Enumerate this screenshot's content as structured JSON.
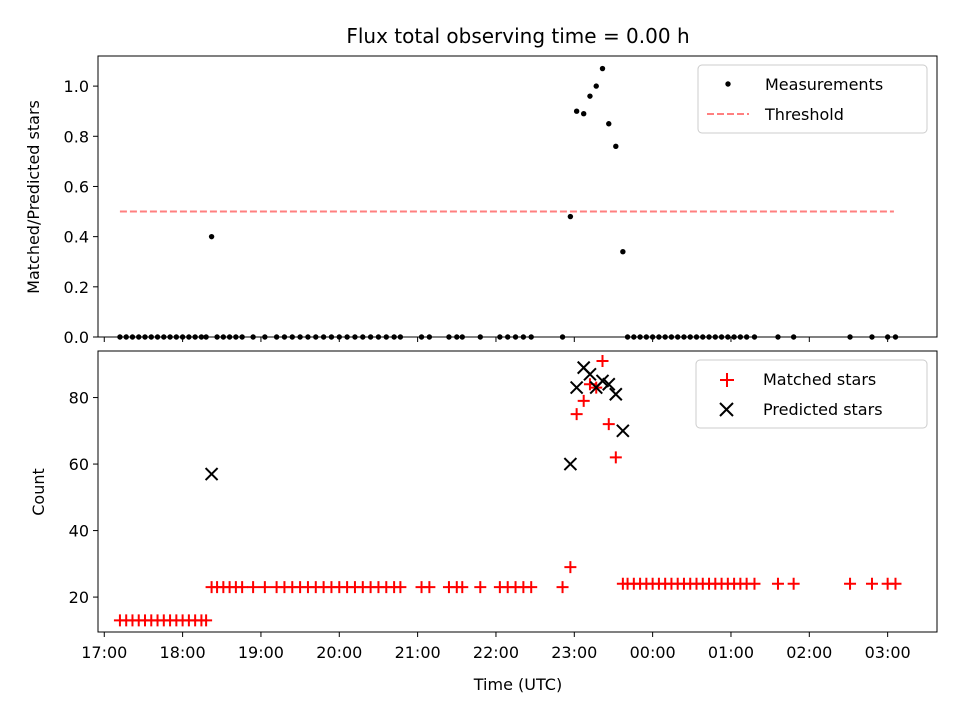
{
  "chart_data": [
    {
      "type": "scatter",
      "title": "Flux total observing time = 0.00 h",
      "xlabel": "",
      "ylabel": "Matched/Predicted stars",
      "x_unit": "hours since 17:00 UTC",
      "xlim": [
        16.92,
        27.63
      ],
      "ylim": [
        0,
        1.12
      ],
      "yticks": [
        "0.0",
        "0.2",
        "0.4",
        "0.6",
        "0.8",
        "1.0"
      ],
      "legend": {
        "placement": "top-right",
        "entries": [
          "Measurements",
          "Threshold"
        ]
      },
      "threshold": {
        "name": "Threshold",
        "value": 0.5,
        "x_range": [
          17.2,
          27.08
        ],
        "color": "#ff7f7f"
      },
      "series": [
        {
          "name": "Measurements",
          "color": "#000000",
          "points": [
            [
              17.2,
              0
            ],
            [
              17.28,
              0
            ],
            [
              17.36,
              0
            ],
            [
              17.44,
              0
            ],
            [
              17.52,
              0
            ],
            [
              17.6,
              0
            ],
            [
              17.68,
              0
            ],
            [
              17.76,
              0
            ],
            [
              17.84,
              0
            ],
            [
              17.92,
              0
            ],
            [
              18.0,
              0
            ],
            [
              18.08,
              0
            ],
            [
              18.16,
              0
            ],
            [
              18.24,
              0
            ],
            [
              18.3,
              0
            ],
            [
              18.37,
              0.4
            ],
            [
              18.44,
              0
            ],
            [
              18.52,
              0
            ],
            [
              18.6,
              0
            ],
            [
              18.68,
              0
            ],
            [
              18.76,
              0
            ],
            [
              18.9,
              0
            ],
            [
              19.05,
              0
            ],
            [
              19.2,
              0
            ],
            [
              19.3,
              0
            ],
            [
              19.4,
              0
            ],
            [
              19.5,
              0
            ],
            [
              19.6,
              0
            ],
            [
              19.7,
              0
            ],
            [
              19.8,
              0
            ],
            [
              19.9,
              0
            ],
            [
              20.0,
              0
            ],
            [
              20.1,
              0
            ],
            [
              20.2,
              0
            ],
            [
              20.3,
              0
            ],
            [
              20.4,
              0
            ],
            [
              20.5,
              0
            ],
            [
              20.6,
              0
            ],
            [
              20.7,
              0
            ],
            [
              20.78,
              0
            ],
            [
              21.05,
              0
            ],
            [
              21.15,
              0
            ],
            [
              21.4,
              0
            ],
            [
              21.5,
              0
            ],
            [
              21.57,
              0
            ],
            [
              21.8,
              0
            ],
            [
              22.05,
              0
            ],
            [
              22.15,
              0
            ],
            [
              22.25,
              0
            ],
            [
              22.35,
              0
            ],
            [
              22.45,
              0
            ],
            [
              22.85,
              0
            ],
            [
              22.95,
              0.48
            ],
            [
              23.03,
              0.9
            ],
            [
              23.12,
              0.89
            ],
            [
              23.2,
              0.96
            ],
            [
              23.28,
              1.0
            ],
            [
              23.36,
              1.07
            ],
            [
              23.44,
              0.85
            ],
            [
              23.53,
              0.76
            ],
            [
              23.62,
              0.34
            ],
            [
              23.68,
              0
            ],
            [
              23.76,
              0
            ],
            [
              23.84,
              0
            ],
            [
              23.92,
              0
            ],
            [
              24.0,
              0
            ],
            [
              24.08,
              0
            ],
            [
              24.16,
              0
            ],
            [
              24.24,
              0
            ],
            [
              24.32,
              0
            ],
            [
              24.4,
              0
            ],
            [
              24.48,
              0
            ],
            [
              24.56,
              0
            ],
            [
              24.64,
              0
            ],
            [
              24.72,
              0
            ],
            [
              24.8,
              0
            ],
            [
              24.88,
              0
            ],
            [
              24.96,
              0
            ],
            [
              25.04,
              0
            ],
            [
              25.12,
              0
            ],
            [
              25.2,
              0
            ],
            [
              25.3,
              0
            ],
            [
              25.6,
              0
            ],
            [
              25.8,
              0
            ],
            [
              26.52,
              0
            ],
            [
              26.8,
              0
            ],
            [
              27.0,
              0
            ],
            [
              27.1,
              0
            ]
          ]
        }
      ]
    },
    {
      "type": "scatter",
      "title": "",
      "xlabel": "Time (UTC)",
      "ylabel": "Count",
      "x_unit": "hours since 17:00 UTC",
      "xlim": [
        16.92,
        27.63
      ],
      "ylim": [
        9.5,
        94
      ],
      "yticks": [
        "20",
        "40",
        "60",
        "80"
      ],
      "xticks": [
        "17:00",
        "18:00",
        "19:00",
        "20:00",
        "21:00",
        "22:00",
        "23:00",
        "00:00",
        "01:00",
        "02:00",
        "03:00"
      ],
      "legend": {
        "placement": "top-right",
        "entries": [
          "Matched stars",
          "Predicted stars"
        ]
      },
      "series": [
        {
          "name": "Matched stars",
          "marker": "plus",
          "color": "#ff0000",
          "points": [
            [
              17.2,
              13
            ],
            [
              17.28,
              13
            ],
            [
              17.36,
              13
            ],
            [
              17.44,
              13
            ],
            [
              17.52,
              13
            ],
            [
              17.6,
              13
            ],
            [
              17.68,
              13
            ],
            [
              17.76,
              13
            ],
            [
              17.84,
              13
            ],
            [
              17.92,
              13
            ],
            [
              18.0,
              13
            ],
            [
              18.08,
              13
            ],
            [
              18.16,
              13
            ],
            [
              18.24,
              13
            ],
            [
              18.3,
              13
            ],
            [
              18.37,
              23
            ],
            [
              18.44,
              23
            ],
            [
              18.52,
              23
            ],
            [
              18.6,
              23
            ],
            [
              18.68,
              23
            ],
            [
              18.76,
              23
            ],
            [
              18.9,
              23
            ],
            [
              19.05,
              23
            ],
            [
              19.2,
              23
            ],
            [
              19.3,
              23
            ],
            [
              19.4,
              23
            ],
            [
              19.5,
              23
            ],
            [
              19.6,
              23
            ],
            [
              19.7,
              23
            ],
            [
              19.8,
              23
            ],
            [
              19.9,
              23
            ],
            [
              20.0,
              23
            ],
            [
              20.1,
              23
            ],
            [
              20.2,
              23
            ],
            [
              20.3,
              23
            ],
            [
              20.4,
              23
            ],
            [
              20.5,
              23
            ],
            [
              20.6,
              23
            ],
            [
              20.7,
              23
            ],
            [
              20.78,
              23
            ],
            [
              21.05,
              23
            ],
            [
              21.15,
              23
            ],
            [
              21.4,
              23
            ],
            [
              21.5,
              23
            ],
            [
              21.57,
              23
            ],
            [
              21.8,
              23
            ],
            [
              22.05,
              23
            ],
            [
              22.15,
              23
            ],
            [
              22.25,
              23
            ],
            [
              22.35,
              23
            ],
            [
              22.45,
              23
            ],
            [
              22.85,
              23
            ],
            [
              22.95,
              29
            ],
            [
              23.03,
              75
            ],
            [
              23.12,
              79
            ],
            [
              23.2,
              84
            ],
            [
              23.28,
              83
            ],
            [
              23.36,
              91
            ],
            [
              23.44,
              72
            ],
            [
              23.53,
              62
            ],
            [
              23.62,
              24
            ],
            [
              23.68,
              24
            ],
            [
              23.76,
              24
            ],
            [
              23.84,
              24
            ],
            [
              23.92,
              24
            ],
            [
              24.0,
              24
            ],
            [
              24.08,
              24
            ],
            [
              24.16,
              24
            ],
            [
              24.24,
              24
            ],
            [
              24.32,
              24
            ],
            [
              24.4,
              24
            ],
            [
              24.48,
              24
            ],
            [
              24.56,
              24
            ],
            [
              24.64,
              24
            ],
            [
              24.72,
              24
            ],
            [
              24.8,
              24
            ],
            [
              24.88,
              24
            ],
            [
              24.96,
              24
            ],
            [
              25.04,
              24
            ],
            [
              25.12,
              24
            ],
            [
              25.2,
              24
            ],
            [
              25.3,
              24
            ],
            [
              25.6,
              24
            ],
            [
              25.8,
              24
            ],
            [
              26.52,
              24
            ],
            [
              26.8,
              24
            ],
            [
              27.0,
              24
            ],
            [
              27.1,
              24
            ]
          ]
        },
        {
          "name": "Predicted stars",
          "marker": "x",
          "color": "#000000",
          "points": [
            [
              18.37,
              57
            ],
            [
              22.95,
              60
            ],
            [
              23.03,
              83
            ],
            [
              23.12,
              89
            ],
            [
              23.2,
              87
            ],
            [
              23.28,
              83
            ],
            [
              23.36,
              85
            ],
            [
              23.44,
              84
            ],
            [
              23.53,
              81
            ],
            [
              23.62,
              70
            ]
          ]
        }
      ]
    }
  ]
}
